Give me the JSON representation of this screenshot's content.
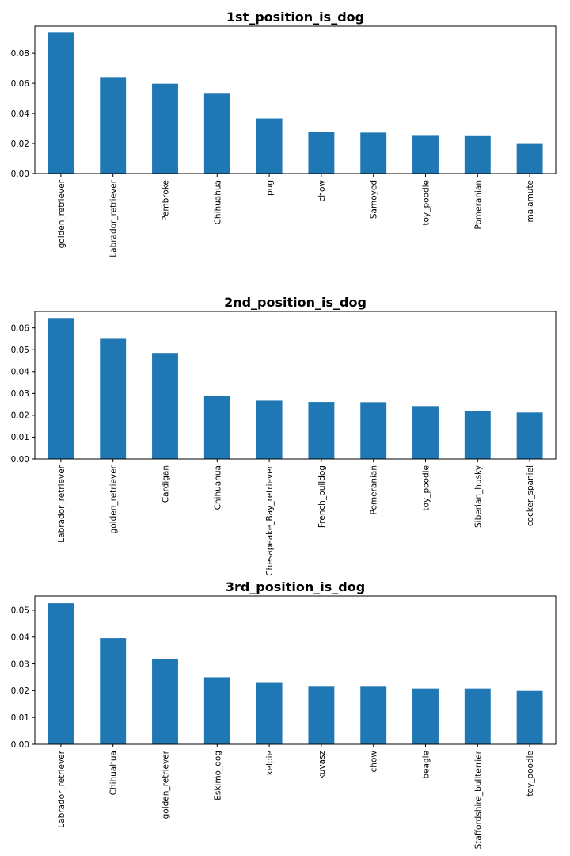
{
  "chart_data": [
    {
      "type": "bar",
      "title": "1st_position_is_dog",
      "xlabel": "",
      "ylabel": "",
      "ylim": [
        0,
        0.098
      ],
      "yticks": [
        0.0,
        0.02,
        0.04,
        0.06,
        0.08
      ],
      "ytick_labels": [
        "0.00",
        "0.02",
        "0.04",
        "0.06",
        "0.08"
      ],
      "categories": [
        "golden_retriever",
        "Labrador_retriever",
        "Pembroke",
        "Chihuahua",
        "pug",
        "chow",
        "Samoyed",
        "toy_poodle",
        "Pomeranian",
        "malamute"
      ],
      "values": [
        0.0936,
        0.0641,
        0.0597,
        0.0536,
        0.0366,
        0.0277,
        0.0272,
        0.0256,
        0.0254,
        0.0197
      ],
      "color": "#1f77b4",
      "grid": false
    },
    {
      "type": "bar",
      "title": "2nd_position_is_dog",
      "xlabel": "",
      "ylabel": "",
      "ylim": [
        0,
        0.0675
      ],
      "yticks": [
        0.0,
        0.01,
        0.02,
        0.03,
        0.04,
        0.05,
        0.06
      ],
      "ytick_labels": [
        "0.00",
        "0.01",
        "0.02",
        "0.03",
        "0.04",
        "0.05",
        "0.06"
      ],
      "categories": [
        "Labrador_retriever",
        "golden_retriever",
        "Cardigan",
        "Chihuahua",
        "Chesapeake_Bay_retriever",
        "French_bulldog",
        "Pomeranian",
        "toy_poodle",
        "Siberian_husky",
        "cocker_spaniel"
      ],
      "values": [
        0.0645,
        0.055,
        0.0482,
        0.0289,
        0.0267,
        0.0261,
        0.026,
        0.0242,
        0.0221,
        0.0213
      ],
      "color": "#1f77b4",
      "grid": false
    },
    {
      "type": "bar",
      "title": "3rd_position_is_dog",
      "xlabel": "",
      "ylabel": "",
      "ylim": [
        0,
        0.0553
      ],
      "yticks": [
        0.0,
        0.01,
        0.02,
        0.03,
        0.04,
        0.05
      ],
      "ytick_labels": [
        "0.00",
        "0.01",
        "0.02",
        "0.03",
        "0.04",
        "0.05"
      ],
      "categories": [
        "Labrador_retriever",
        "Chihuahua",
        "golden_retriever",
        "Eskimo_dog",
        "kelpie",
        "kuvasz",
        "chow",
        "beagle",
        "Staffordshire_bullterrier",
        "toy_poodle"
      ],
      "values": [
        0.0526,
        0.0396,
        0.0318,
        0.025,
        0.0229,
        0.0215,
        0.0215,
        0.0208,
        0.0208,
        0.0199
      ],
      "color": "#1f77b4",
      "grid": false
    }
  ]
}
